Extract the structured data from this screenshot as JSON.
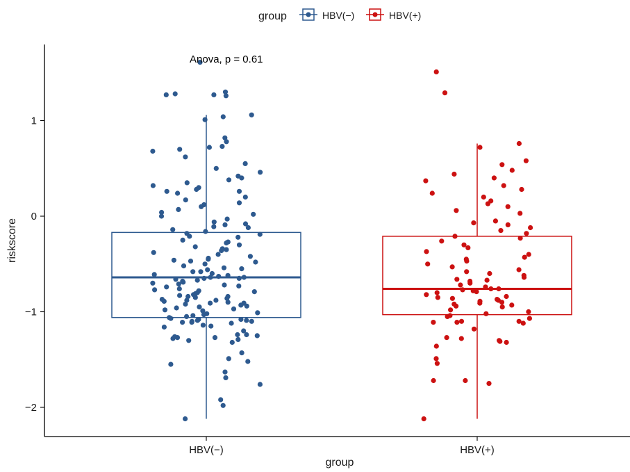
{
  "chart_data": {
    "type": "boxplot",
    "xlabel": "group",
    "ylabel": "riskscore",
    "ylim": [
      -2.3,
      1.8
    ],
    "yticks": [
      -2,
      -1,
      0,
      1
    ],
    "ytick_labels": [
      "−2",
      "−1",
      "0",
      "1"
    ],
    "categories": [
      "HBV(−)",
      "HBV(+)"
    ],
    "legend": {
      "title": "group",
      "position": "top",
      "entries": [
        "HBV(−)",
        "HBV(+)"
      ]
    },
    "annotation": "Anova, p = 0.61",
    "grid": false,
    "series": [
      {
        "name": "HBV(−)",
        "color": "#2E5A8F",
        "box": {
          "whisker_low": -2.12,
          "q1": -1.06,
          "median": -0.64,
          "q3": -0.17,
          "whisker_high": 1.06
        },
        "points": [
          -1.98,
          -2.12,
          -1.92,
          -1.76,
          -1.69,
          -1.63,
          -1.55,
          -1.52,
          -1.49,
          -1.43,
          -1.32,
          -1.3,
          -1.29,
          -1.28,
          -1.27,
          -1.27,
          -1.26,
          -1.24,
          -1.24,
          -1.2,
          -1.16,
          -1.14,
          -1.12,
          -1.11,
          -1.11,
          -1.1,
          -1.1,
          -1.09,
          -1.09,
          -1.08,
          -1.08,
          -1.07,
          -1.06,
          -1.05,
          -1.04,
          -1.02,
          -1.01,
          -0.99,
          -0.97,
          -0.96,
          -0.95,
          -0.94,
          -0.93,
          -0.92,
          -0.91,
          -0.91,
          -0.9,
          -0.89,
          -0.88,
          -0.87,
          -0.86,
          -0.85,
          -0.84,
          -0.83,
          -0.82,
          -0.81,
          -0.8,
          -0.79,
          -0.78,
          -0.77,
          -0.76,
          -0.74,
          -0.72,
          -0.7,
          -0.69,
          -0.68,
          -0.67,
          -0.66,
          -0.65,
          -0.65,
          -0.64,
          -0.64,
          -0.63,
          -0.62,
          -0.61,
          -0.6,
          -0.58,
          -0.56,
          -0.54,
          -0.52,
          -0.5,
          -0.48,
          -0.46,
          -0.44,
          -0.42,
          -0.4,
          -0.38,
          -0.36,
          -0.34,
          -0.32,
          -0.3,
          -0.28,
          -0.25,
          -0.22,
          -0.19,
          -0.16,
          -0.14,
          -0.11,
          -0.09,
          -0.08,
          -0.06,
          -0.03,
          0.0,
          0.02,
          0.04,
          0.07,
          0.1,
          0.14,
          0.17,
          0.2,
          0.24,
          0.26,
          0.28,
          0.3,
          0.32,
          0.35,
          0.38,
          0.4,
          0.42,
          0.46,
          0.5,
          0.55,
          0.62,
          0.68,
          0.7,
          0.72,
          0.73,
          0.78,
          0.82,
          1.01,
          1.04,
          1.06,
          1.26,
          1.27,
          1.27,
          1.28,
          1.3,
          1.61,
          -0.18,
          -0.35,
          -0.47,
          -0.58,
          -0.71,
          -0.84,
          -0.98,
          -1.15,
          -1.25,
          -0.27,
          -0.45,
          -0.55,
          -0.73,
          -0.88,
          -1.03,
          0.12,
          0.26,
          -0.12,
          -0.21
        ]
      },
      {
        "name": "HBV(+)",
        "color": "#CC1111",
        "box": {
          "whisker_low": -2.12,
          "q1": -1.03,
          "median": -0.76,
          "q3": -0.21,
          "whisker_high": 0.76
        },
        "points": [
          -2.12,
          -1.75,
          -1.72,
          -1.72,
          -1.54,
          -1.49,
          -1.36,
          -1.32,
          -1.31,
          -1.3,
          -1.28,
          -1.27,
          -1.18,
          -1.12,
          -1.11,
          -1.11,
          -1.1,
          -1.1,
          -1.07,
          -1.05,
          -1.04,
          -1.02,
          -1.0,
          -0.98,
          -0.95,
          -0.94,
          -0.93,
          -0.92,
          -0.91,
          -0.9,
          -0.89,
          -0.88,
          -0.87,
          -0.86,
          -0.85,
          -0.84,
          -0.82,
          -0.8,
          -0.79,
          -0.78,
          -0.77,
          -0.76,
          -0.76,
          -0.74,
          -0.72,
          -0.7,
          -0.68,
          -0.67,
          -0.66,
          -0.64,
          -0.62,
          -0.6,
          -0.58,
          -0.56,
          -0.53,
          -0.5,
          -0.47,
          -0.45,
          -0.43,
          -0.4,
          -0.37,
          -0.33,
          -0.3,
          -0.26,
          -0.23,
          -0.21,
          -0.18,
          -0.15,
          -0.12,
          -0.09,
          -0.07,
          -0.05,
          0.03,
          0.06,
          0.1,
          0.13,
          0.16,
          0.2,
          0.24,
          0.28,
          0.32,
          0.37,
          0.4,
          0.44,
          0.48,
          0.54,
          0.58,
          0.72,
          0.76,
          1.29,
          1.51
        ]
      }
    ]
  }
}
